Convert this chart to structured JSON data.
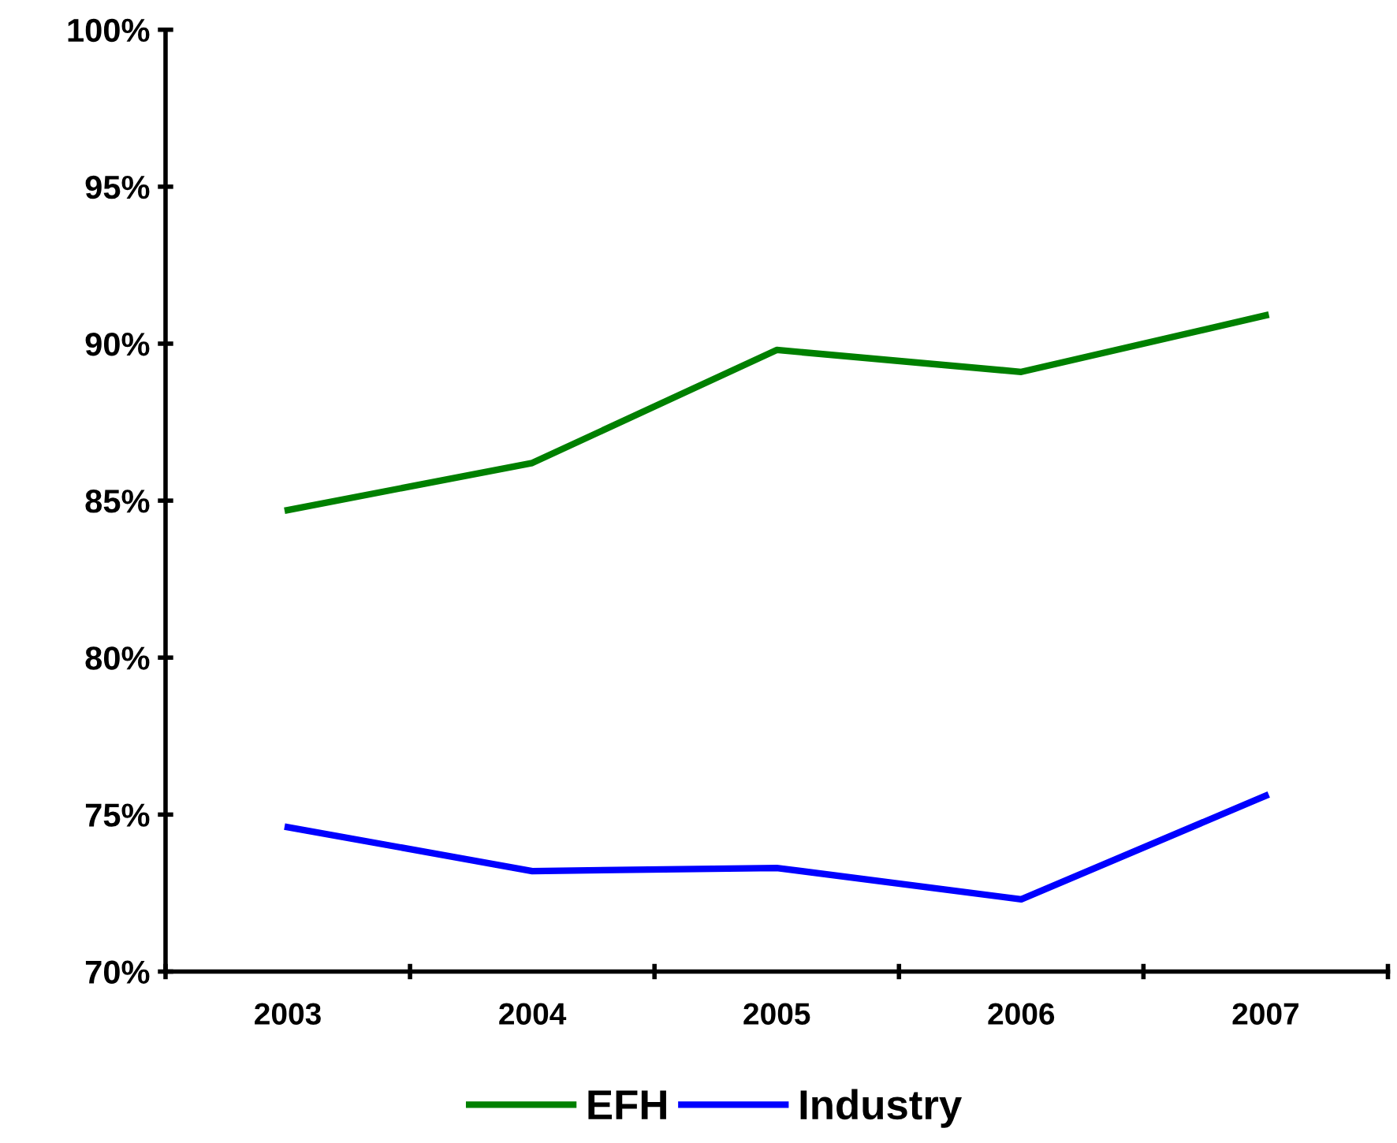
{
  "chart_data": {
    "type": "line",
    "categories": [
      "2003",
      "2004",
      "2005",
      "2006",
      "2007"
    ],
    "series": [
      {
        "name": "EFH",
        "color": "#008000",
        "values": [
          84.7,
          86.2,
          89.8,
          89.1,
          90.9
        ]
      },
      {
        "name": "Industry",
        "color": "#0000ff",
        "values": [
          74.6,
          73.2,
          73.3,
          72.3,
          75.6
        ]
      }
    ],
    "ylim": [
      70,
      100
    ],
    "yticks": [
      {
        "value": 70,
        "label": "70%"
      },
      {
        "value": 75,
        "label": "75%"
      },
      {
        "value": 80,
        "label": "80%"
      },
      {
        "value": 85,
        "label": "85%"
      },
      {
        "value": 90,
        "label": "90%"
      },
      {
        "value": 95,
        "label": "95%"
      },
      {
        "value": 100,
        "label": "100%"
      }
    ],
    "grid": false,
    "legend": "bottom",
    "marker": "none",
    "line_style": "solid"
  }
}
